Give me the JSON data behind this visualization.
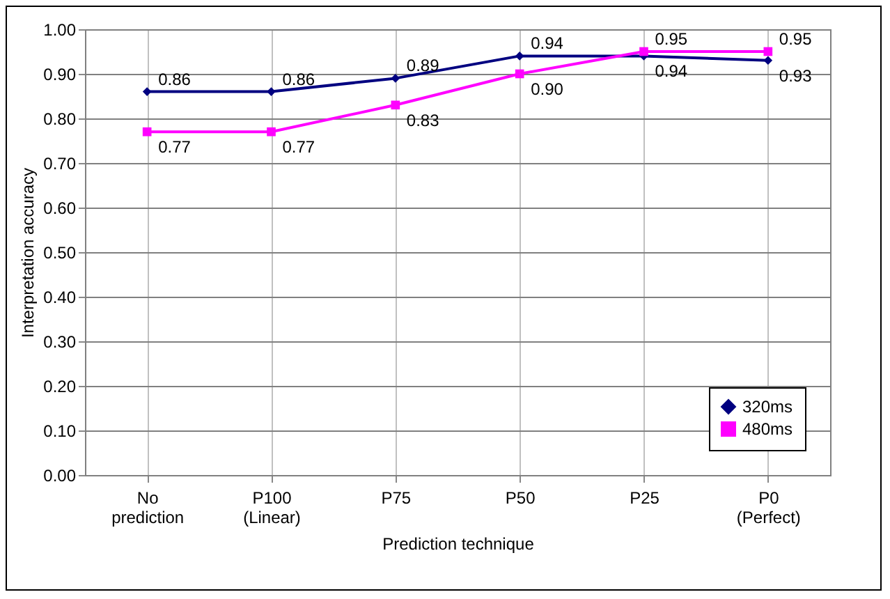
{
  "chart_data": {
    "type": "line",
    "xlabel": "Prediction technique",
    "ylabel": "Interpretation accuracy",
    "categories": [
      "No prediction",
      "P100 (Linear)",
      "P75",
      "P50",
      "P25",
      "P0 (Perfect)"
    ],
    "series": [
      {
        "name": "320ms",
        "color": "#000080",
        "marker": "diamond",
        "values": [
          0.86,
          0.86,
          0.89,
          0.94,
          0.94,
          0.93
        ],
        "value_labels": [
          "0.86",
          "0.86",
          "0.89",
          "0.94",
          "0.94",
          "0.93"
        ]
      },
      {
        "name": "480ms",
        "color": "#ff00ff",
        "marker": "square",
        "values": [
          0.77,
          0.77,
          0.83,
          0.9,
          0.95,
          0.95
        ],
        "value_labels": [
          "0.77",
          "0.77",
          "0.83",
          "0.90",
          "0.95",
          "0.95"
        ]
      }
    ],
    "ylim": [
      0,
      1
    ],
    "yticks": [
      {
        "value": 0,
        "label": "0.00"
      },
      {
        "value": 0.1,
        "label": "0.10"
      },
      {
        "value": 0.2,
        "label": "0.20"
      },
      {
        "value": 0.3,
        "label": "0.30"
      },
      {
        "value": 0.4,
        "label": "0.40"
      },
      {
        "value": 0.5,
        "label": "0.50"
      },
      {
        "value": 0.6,
        "label": "0.60"
      },
      {
        "value": 0.7,
        "label": "0.70"
      },
      {
        "value": 0.8,
        "label": "0.80"
      },
      {
        "value": 0.9,
        "label": "0.90"
      },
      {
        "value": 1,
        "label": "1.00"
      }
    ],
    "grid": true,
    "legend": "bottom right"
  }
}
